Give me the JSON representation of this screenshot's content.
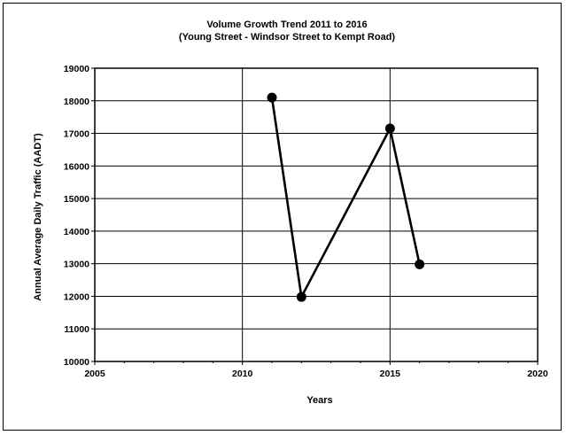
{
  "chart_data": {
    "type": "line",
    "title": "Volume Growth Trend 2011 to 2016",
    "subtitle": "(Young Street - Windsor Street to Kempt Road)",
    "xlabel": "Years",
    "ylabel": "Annual Average Daily Traffic  (AADT)",
    "xlim": [
      2005,
      2020
    ],
    "ylim": [
      10000,
      19000
    ],
    "x_ticks": [
      "2005",
      "2010",
      "2015",
      "2020"
    ],
    "y_ticks": [
      "10000",
      "11000",
      "12000",
      "13000",
      "14000",
      "15000",
      "16000",
      "17000",
      "18000",
      "19000"
    ],
    "grid": true,
    "legend": "none",
    "series": [
      {
        "color": "#000000",
        "points": [
          {
            "x": 2011,
            "y": 18100
          },
          {
            "x": 2012,
            "y": 11980
          },
          {
            "x": 2015,
            "y": 17150
          },
          {
            "x": 2016,
            "y": 12980
          }
        ]
      }
    ]
  }
}
